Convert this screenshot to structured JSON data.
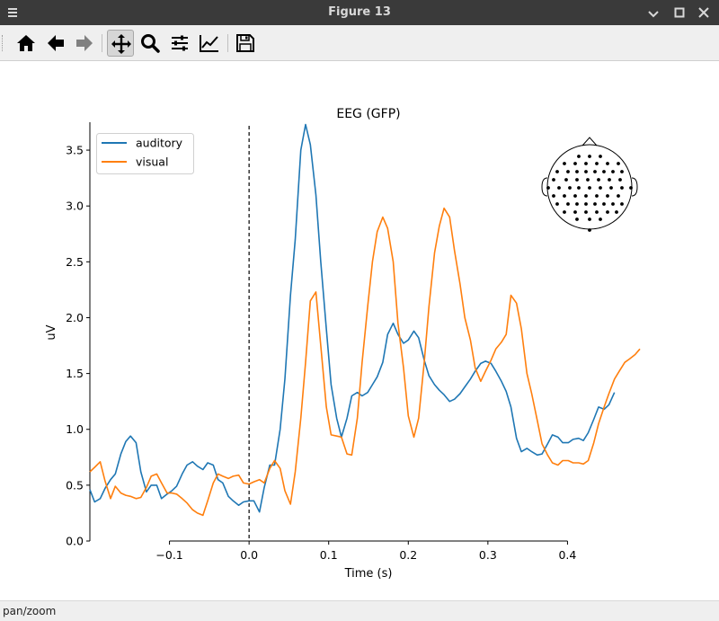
{
  "window": {
    "title": "Figure 13"
  },
  "toolbar": {
    "buttons": [
      {
        "name": "home",
        "icon": "home-icon"
      },
      {
        "name": "back",
        "icon": "arrow-left-icon"
      },
      {
        "name": "forward",
        "icon": "arrow-right-icon"
      },
      {
        "name": "pan",
        "icon": "move-icon",
        "active": true
      },
      {
        "name": "zoom",
        "icon": "magnifier-icon"
      },
      {
        "name": "configure-subplots",
        "icon": "sliders-icon"
      },
      {
        "name": "edit-axis",
        "icon": "line-chart-icon"
      },
      {
        "name": "save",
        "icon": "floppy-icon"
      }
    ]
  },
  "status": {
    "mode": "pan/zoom"
  },
  "chart_data": {
    "type": "line",
    "title": "EEG (GFP)",
    "xlabel": "Time (s)",
    "ylabel": "uV",
    "xlim": [
      -0.2,
      0.5
    ],
    "ylim": [
      0,
      3.75
    ],
    "xticks": [
      -0.1,
      0.0,
      0.1,
      0.2,
      0.3,
      0.4
    ],
    "xtick_labels": [
      "−0.1",
      "0.0",
      "0.1",
      "0.2",
      "0.3",
      "0.4"
    ],
    "yticks": [
      0.0,
      0.5,
      1.0,
      1.5,
      2.0,
      2.5,
      3.0,
      3.5
    ],
    "ytick_labels": [
      "0.0",
      "0.5",
      "1.0",
      "1.5",
      "2.0",
      "2.5",
      "3.0",
      "3.5"
    ],
    "vline_x": 0.0,
    "legend_position": "top-left",
    "sensor_inset": "top-right",
    "series": [
      {
        "name": "auditory",
        "color": "#1f77b4",
        "points": [
          [
            -0.2,
            0.46
          ],
          [
            -0.194,
            0.35
          ],
          [
            -0.187,
            0.38
          ],
          [
            -0.181,
            0.47
          ],
          [
            -0.174,
            0.55
          ],
          [
            -0.168,
            0.6
          ],
          [
            -0.161,
            0.78
          ],
          [
            -0.155,
            0.89
          ],
          [
            -0.149,
            0.94
          ],
          [
            -0.142,
            0.88
          ],
          [
            -0.136,
            0.62
          ],
          [
            -0.129,
            0.44
          ],
          [
            -0.123,
            0.5
          ],
          [
            -0.116,
            0.5
          ],
          [
            -0.11,
            0.38
          ],
          [
            -0.103,
            0.42
          ],
          [
            -0.097,
            0.45
          ],
          [
            -0.091,
            0.49
          ],
          [
            -0.084,
            0.6
          ],
          [
            -0.078,
            0.68
          ],
          [
            -0.071,
            0.71
          ],
          [
            -0.065,
            0.67
          ],
          [
            -0.058,
            0.64
          ],
          [
            -0.052,
            0.7
          ],
          [
            -0.045,
            0.68
          ],
          [
            -0.039,
            0.55
          ],
          [
            -0.033,
            0.52
          ],
          [
            -0.026,
            0.4
          ],
          [
            -0.02,
            0.36
          ],
          [
            -0.013,
            0.32
          ],
          [
            -0.007,
            0.35
          ],
          [
            0.0,
            0.36
          ],
          [
            0.006,
            0.36
          ],
          [
            0.013,
            0.26
          ],
          [
            0.019,
            0.48
          ],
          [
            0.026,
            0.68
          ],
          [
            0.032,
            0.68
          ],
          [
            0.039,
            1.0
          ],
          [
            0.045,
            1.45
          ],
          [
            0.052,
            2.2
          ],
          [
            0.058,
            2.7
          ],
          [
            0.065,
            3.5
          ],
          [
            0.071,
            3.73
          ],
          [
            0.077,
            3.55
          ],
          [
            0.084,
            3.1
          ],
          [
            0.09,
            2.5
          ],
          [
            0.097,
            1.9
          ],
          [
            0.103,
            1.4
          ],
          [
            0.11,
            1.1
          ],
          [
            0.116,
            0.93
          ],
          [
            0.123,
            1.1
          ],
          [
            0.129,
            1.3
          ],
          [
            0.136,
            1.33
          ],
          [
            0.142,
            1.3
          ],
          [
            0.149,
            1.33
          ],
          [
            0.155,
            1.4
          ],
          [
            0.161,
            1.47
          ],
          [
            0.168,
            1.6
          ],
          [
            0.174,
            1.85
          ],
          [
            0.181,
            1.95
          ],
          [
            0.187,
            1.85
          ],
          [
            0.194,
            1.77
          ],
          [
            0.2,
            1.8
          ],
          [
            0.207,
            1.88
          ],
          [
            0.213,
            1.82
          ],
          [
            0.22,
            1.62
          ],
          [
            0.226,
            1.48
          ],
          [
            0.233,
            1.4
          ],
          [
            0.239,
            1.35
          ],
          [
            0.245,
            1.31
          ],
          [
            0.252,
            1.25
          ],
          [
            0.258,
            1.27
          ],
          [
            0.265,
            1.32
          ],
          [
            0.271,
            1.38
          ],
          [
            0.278,
            1.45
          ],
          [
            0.284,
            1.52
          ],
          [
            0.291,
            1.59
          ],
          [
            0.297,
            1.61
          ],
          [
            0.304,
            1.59
          ],
          [
            0.31,
            1.52
          ],
          [
            0.317,
            1.43
          ],
          [
            0.323,
            1.34
          ],
          [
            0.329,
            1.2
          ],
          [
            0.336,
            0.92
          ],
          [
            0.342,
            0.8
          ],
          [
            0.349,
            0.83
          ],
          [
            0.355,
            0.8
          ],
          [
            0.362,
            0.77
          ],
          [
            0.368,
            0.78
          ],
          [
            0.375,
            0.87
          ],
          [
            0.381,
            0.95
          ],
          [
            0.388,
            0.93
          ],
          [
            0.394,
            0.88
          ],
          [
            0.401,
            0.88
          ],
          [
            0.407,
            0.91
          ],
          [
            0.414,
            0.92
          ],
          [
            0.42,
            0.9
          ],
          [
            0.426,
            0.97
          ],
          [
            0.433,
            1.09
          ],
          [
            0.439,
            1.2
          ],
          [
            0.446,
            1.18
          ],
          [
            0.452,
            1.22
          ],
          [
            0.459,
            1.33
          ]
        ]
      },
      {
        "name": "visual",
        "color": "#ff7f0e",
        "points": [
          [
            -0.2,
            0.62
          ],
          [
            -0.194,
            0.66
          ],
          [
            -0.187,
            0.71
          ],
          [
            -0.181,
            0.54
          ],
          [
            -0.174,
            0.38
          ],
          [
            -0.168,
            0.49
          ],
          [
            -0.161,
            0.43
          ],
          [
            -0.155,
            0.41
          ],
          [
            -0.149,
            0.4
          ],
          [
            -0.142,
            0.38
          ],
          [
            -0.136,
            0.39
          ],
          [
            -0.129,
            0.48
          ],
          [
            -0.123,
            0.58
          ],
          [
            -0.116,
            0.6
          ],
          [
            -0.11,
            0.52
          ],
          [
            -0.103,
            0.43
          ],
          [
            -0.097,
            0.43
          ],
          [
            -0.091,
            0.42
          ],
          [
            -0.084,
            0.38
          ],
          [
            -0.078,
            0.34
          ],
          [
            -0.071,
            0.28
          ],
          [
            -0.065,
            0.25
          ],
          [
            -0.058,
            0.23
          ],
          [
            -0.052,
            0.36
          ],
          [
            -0.045,
            0.52
          ],
          [
            -0.039,
            0.6
          ],
          [
            -0.033,
            0.58
          ],
          [
            -0.026,
            0.56
          ],
          [
            -0.02,
            0.58
          ],
          [
            -0.013,
            0.59
          ],
          [
            -0.007,
            0.52
          ],
          [
            0.0,
            0.51
          ],
          [
            0.006,
            0.53
          ],
          [
            0.013,
            0.55
          ],
          [
            0.019,
            0.52
          ],
          [
            0.026,
            0.65
          ],
          [
            0.032,
            0.72
          ],
          [
            0.039,
            0.65
          ],
          [
            0.045,
            0.45
          ],
          [
            0.052,
            0.33
          ],
          [
            0.058,
            0.62
          ],
          [
            0.065,
            1.1
          ],
          [
            0.071,
            1.6
          ],
          [
            0.077,
            2.15
          ],
          [
            0.084,
            2.23
          ],
          [
            0.09,
            1.75
          ],
          [
            0.097,
            1.2
          ],
          [
            0.103,
            0.95
          ],
          [
            0.11,
            0.94
          ],
          [
            0.116,
            0.93
          ],
          [
            0.123,
            0.78
          ],
          [
            0.129,
            0.77
          ],
          [
            0.136,
            1.1
          ],
          [
            0.142,
            1.6
          ],
          [
            0.149,
            2.1
          ],
          [
            0.155,
            2.5
          ],
          [
            0.161,
            2.77
          ],
          [
            0.168,
            2.9
          ],
          [
            0.174,
            2.8
          ],
          [
            0.181,
            2.5
          ],
          [
            0.187,
            1.95
          ],
          [
            0.194,
            1.55
          ],
          [
            0.2,
            1.12
          ],
          [
            0.207,
            0.93
          ],
          [
            0.213,
            1.1
          ],
          [
            0.22,
            1.6
          ],
          [
            0.226,
            2.1
          ],
          [
            0.233,
            2.58
          ],
          [
            0.239,
            2.82
          ],
          [
            0.245,
            2.98
          ],
          [
            0.252,
            2.9
          ],
          [
            0.258,
            2.6
          ],
          [
            0.265,
            2.3
          ],
          [
            0.271,
            2.0
          ],
          [
            0.278,
            1.8
          ],
          [
            0.284,
            1.55
          ],
          [
            0.291,
            1.43
          ],
          [
            0.297,
            1.52
          ],
          [
            0.304,
            1.62
          ],
          [
            0.31,
            1.72
          ],
          [
            0.317,
            1.78
          ],
          [
            0.323,
            1.85
          ],
          [
            0.329,
            2.2
          ],
          [
            0.336,
            2.13
          ],
          [
            0.342,
            1.9
          ],
          [
            0.349,
            1.5
          ],
          [
            0.355,
            1.32
          ],
          [
            0.362,
            1.08
          ],
          [
            0.368,
            0.87
          ],
          [
            0.375,
            0.77
          ],
          [
            0.381,
            0.7
          ],
          [
            0.388,
            0.68
          ],
          [
            0.394,
            0.72
          ],
          [
            0.401,
            0.72
          ],
          [
            0.407,
            0.7
          ],
          [
            0.414,
            0.7
          ],
          [
            0.42,
            0.69
          ],
          [
            0.426,
            0.72
          ],
          [
            0.433,
            0.88
          ],
          [
            0.439,
            1.05
          ],
          [
            0.446,
            1.2
          ],
          [
            0.452,
            1.32
          ],
          [
            0.459,
            1.45
          ],
          [
            0.465,
            1.52
          ],
          [
            0.472,
            1.6
          ],
          [
            0.478,
            1.63
          ],
          [
            0.485,
            1.67
          ],
          [
            0.491,
            1.72
          ]
        ]
      }
    ]
  }
}
